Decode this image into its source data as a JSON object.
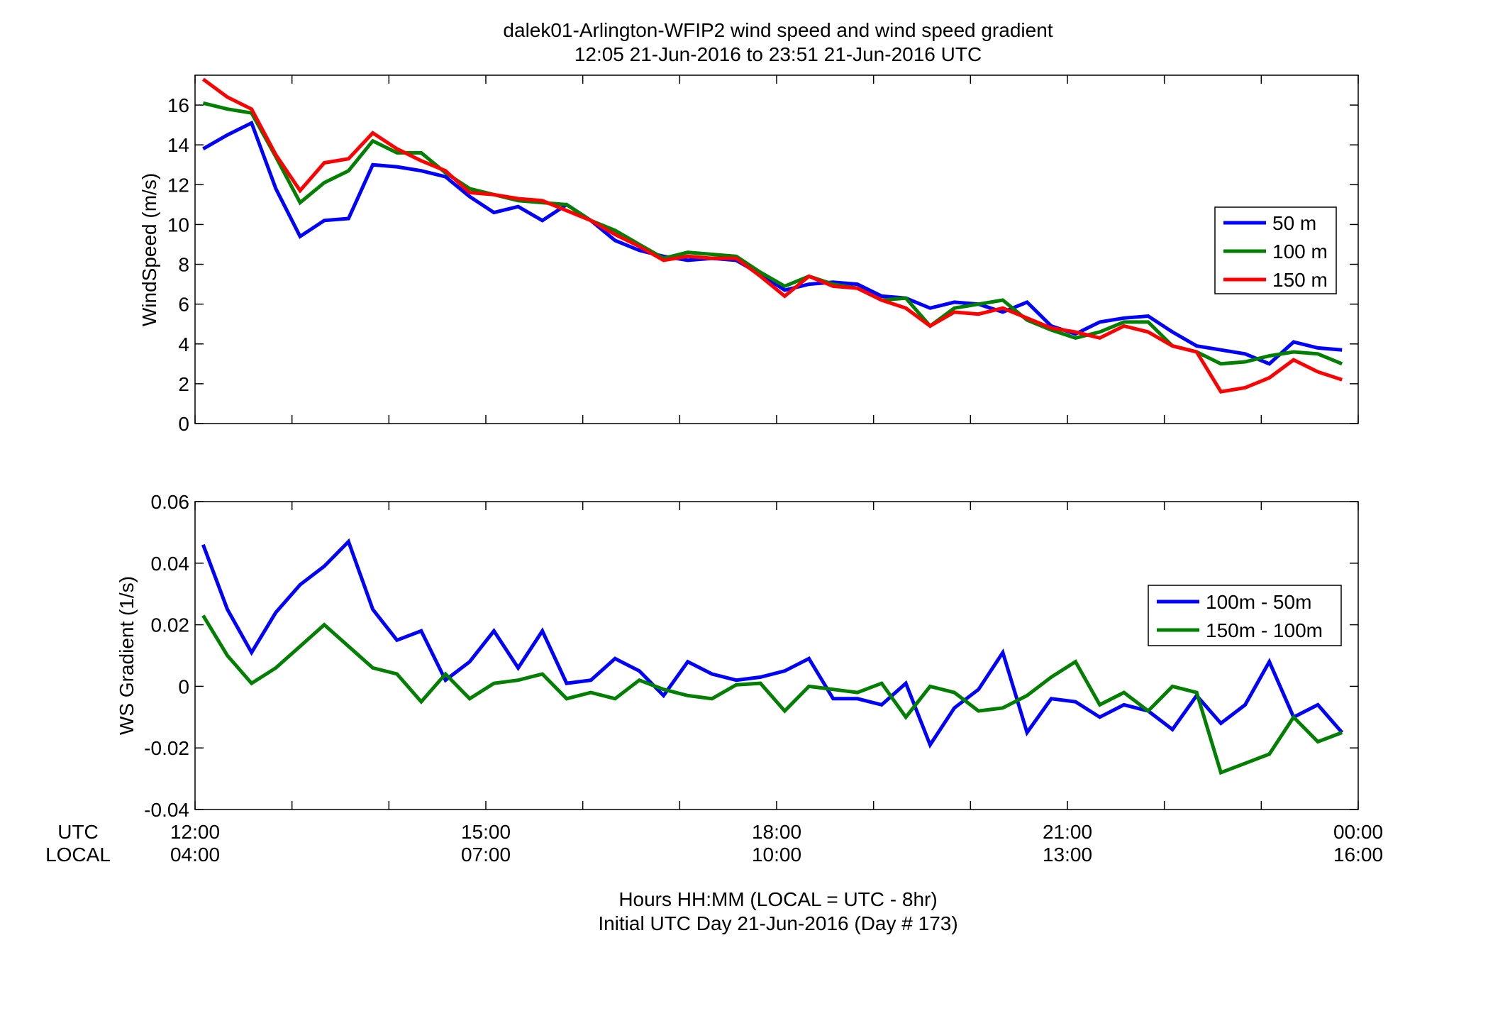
{
  "title_line1": "dalek01-Arlington-WFIP2  wind speed and wind speed gradient",
  "title_line2": "12:05 21-Jun-2016 to 23:51 21-Jun-2016  UTC",
  "xlabel_line1": "Hours HH:MM  (LOCAL = UTC - 8hr)",
  "xlabel_line2": "Initial UTC Day 21-Jun-2016 (Day # 173)",
  "row_label_utc": "UTC",
  "row_label_local": "LOCAL",
  "x_ticks_utc": [
    "12:00",
    "15:00",
    "18:00",
    "21:00",
    "00:00"
  ],
  "x_ticks_local": [
    "04:00",
    "07:00",
    "10:00",
    "13:00",
    "16:00"
  ],
  "colors": {
    "blue": "#0000ff",
    "green": "#007f00",
    "red": "#ff0000"
  },
  "chart_data": [
    {
      "type": "line",
      "ylabel": "WindSpeed (m/s)",
      "ylim": [
        0,
        17.5
      ],
      "yticks": [
        0,
        2,
        4,
        6,
        8,
        10,
        12,
        14,
        16
      ],
      "xlim": [
        "12:00",
        "00:00"
      ],
      "grid": false,
      "legend_position": "right",
      "x": [
        "12:05",
        "12:20",
        "12:35",
        "12:50",
        "13:05",
        "13:20",
        "13:35",
        "13:50",
        "14:05",
        "14:20",
        "14:35",
        "14:50",
        "15:05",
        "15:20",
        "15:35",
        "15:50",
        "16:05",
        "16:20",
        "16:35",
        "16:50",
        "17:05",
        "17:20",
        "17:35",
        "17:50",
        "18:05",
        "18:20",
        "18:35",
        "18:50",
        "19:05",
        "19:20",
        "19:35",
        "19:50",
        "20:05",
        "20:20",
        "20:35",
        "20:50",
        "21:05",
        "21:20",
        "21:35",
        "21:50",
        "22:05",
        "22:20",
        "22:35",
        "22:50",
        "23:05",
        "23:20",
        "23:35",
        "23:50"
      ],
      "series": [
        {
          "name": "50 m",
          "color": "#0000ff",
          "values": [
            13.8,
            14.5,
            15.1,
            11.8,
            9.4,
            10.2,
            10.3,
            13.0,
            12.9,
            12.7,
            12.4,
            11.4,
            10.6,
            10.9,
            10.2,
            11.0,
            10.2,
            9.2,
            8.7,
            8.4,
            8.2,
            8.3,
            8.2,
            7.5,
            6.7,
            7.0,
            7.1,
            7.0,
            6.4,
            6.3,
            5.8,
            6.1,
            6.0,
            5.6,
            6.1,
            4.9,
            4.5,
            5.1,
            5.3,
            5.4,
            4.6,
            3.9,
            3.7,
            3.5,
            3.0,
            4.1,
            3.8,
            3.7
          ]
        },
        {
          "name": "100 m",
          "color": "#007f00",
          "values": [
            16.1,
            15.8,
            15.6,
            13.4,
            11.1,
            12.1,
            12.7,
            14.2,
            13.6,
            13.6,
            12.6,
            11.8,
            11.5,
            11.2,
            11.1,
            11.0,
            10.2,
            9.7,
            9.0,
            8.3,
            8.6,
            8.5,
            8.4,
            7.6,
            6.9,
            7.4,
            7.0,
            6.8,
            6.2,
            6.3,
            4.9,
            5.8,
            6.0,
            6.2,
            5.2,
            4.7,
            4.3,
            4.6,
            5.1,
            5.1,
            3.9,
            3.6,
            3.0,
            3.1,
            3.4,
            3.6,
            3.5,
            3.0
          ]
        },
        {
          "name": "150 m",
          "color": "#ff0000",
          "values": [
            17.3,
            16.4,
            15.8,
            13.5,
            11.7,
            13.1,
            13.3,
            14.6,
            13.8,
            13.2,
            12.7,
            11.6,
            11.5,
            11.3,
            11.2,
            10.7,
            10.2,
            9.5,
            8.9,
            8.2,
            8.4,
            8.3,
            8.3,
            7.4,
            6.4,
            7.4,
            6.9,
            6.8,
            6.2,
            5.8,
            4.9,
            5.6,
            5.5,
            5.8,
            5.3,
            4.8,
            4.6,
            4.3,
            4.9,
            4.6,
            3.9,
            3.6,
            1.6,
            1.8,
            2.3,
            3.2,
            2.6,
            2.2
          ]
        }
      ]
    },
    {
      "type": "line",
      "ylabel": "WS Gradient (1/s)",
      "ylim": [
        -0.04,
        0.06
      ],
      "yticks": [
        -0.04,
        -0.02,
        0,
        0.02,
        0.04,
        0.06
      ],
      "ytick_labels": [
        "-0.04",
        "-0.02",
        "0",
        "0.02",
        "0.04",
        "0.06"
      ],
      "xlim": [
        "12:00",
        "00:00"
      ],
      "grid": false,
      "legend_position": "right",
      "x": [
        "12:05",
        "12:20",
        "12:35",
        "12:50",
        "13:05",
        "13:20",
        "13:35",
        "13:50",
        "14:05",
        "14:20",
        "14:35",
        "14:50",
        "15:05",
        "15:20",
        "15:35",
        "15:50",
        "16:05",
        "16:20",
        "16:35",
        "16:50",
        "17:05",
        "17:20",
        "17:35",
        "17:50",
        "18:05",
        "18:20",
        "18:35",
        "18:50",
        "19:05",
        "19:20",
        "19:35",
        "19:50",
        "20:05",
        "20:20",
        "20:35",
        "20:50",
        "21:05",
        "21:20",
        "21:35",
        "21:50",
        "22:05",
        "22:20",
        "22:35",
        "22:50",
        "23:05",
        "23:20",
        "23:35",
        "23:50"
      ],
      "series": [
        {
          "name": "100m - 50m",
          "color": "#0000ff",
          "values": [
            0.046,
            0.025,
            0.011,
            0.024,
            0.033,
            0.039,
            0.047,
            0.025,
            0.015,
            0.018,
            0.002,
            0.008,
            0.018,
            0.006,
            0.018,
            0.001,
            0.002,
            0.009,
            0.005,
            -0.003,
            0.008,
            0.004,
            0.002,
            0.003,
            0.005,
            0.009,
            -0.004,
            -0.004,
            -0.006,
            0.001,
            -0.019,
            -0.007,
            -0.001,
            0.011,
            -0.015,
            -0.004,
            -0.005,
            -0.01,
            -0.006,
            -0.008,
            -0.014,
            -0.003,
            -0.012,
            -0.006,
            0.008,
            -0.01,
            -0.006,
            -0.015
          ]
        },
        {
          "name": "150m - 100m",
          "color": "#007f00",
          "values": [
            0.023,
            0.01,
            0.001,
            0.006,
            0.013,
            0.02,
            0.013,
            0.006,
            0.004,
            -0.005,
            0.004,
            -0.004,
            0.001,
            0.002,
            0.004,
            -0.004,
            -0.002,
            -0.004,
            0.002,
            -0.001,
            -0.003,
            -0.004,
            0.0005,
            0.001,
            -0.008,
            0.0,
            -0.001,
            -0.002,
            0.001,
            -0.01,
            0.0,
            -0.002,
            -0.008,
            -0.007,
            -0.003,
            0.003,
            0.008,
            -0.006,
            -0.002,
            -0.008,
            0.0,
            -0.002,
            -0.028,
            -0.025,
            -0.022,
            -0.01,
            -0.018,
            -0.015
          ]
        }
      ]
    }
  ]
}
